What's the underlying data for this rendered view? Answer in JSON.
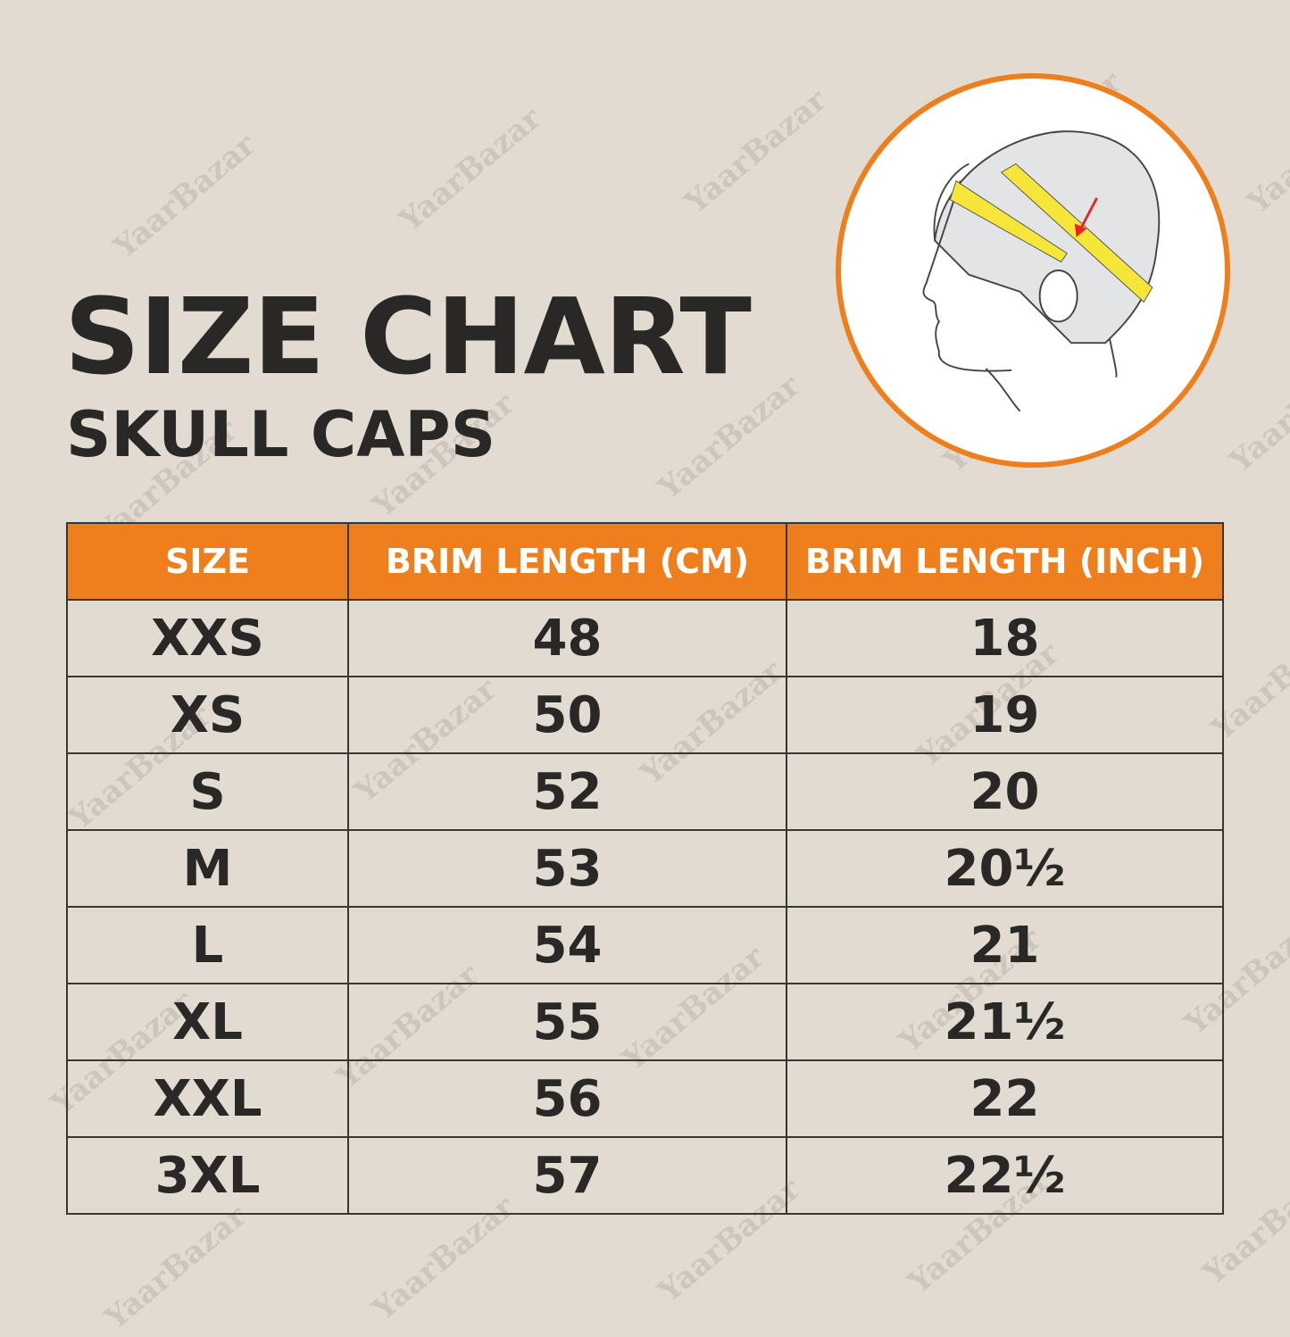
{
  "watermark": "YaarBazar",
  "title": "SIZE CHART",
  "subtitle": "SKULL CAPS",
  "colors": {
    "background": "#e2dbd2",
    "accent": "#ee7f1c",
    "text": "#2a2826"
  },
  "illustration": {
    "description_icon": "head-measuring-tape-icon"
  },
  "table": {
    "headers": [
      "SIZE",
      "BRIM LENGTH (CM)",
      "BRIM LENGTH (INCH)"
    ],
    "rows": [
      [
        "XXS",
        "48",
        "18"
      ],
      [
        "XS",
        "50",
        "19"
      ],
      [
        "S",
        "52",
        "20"
      ],
      [
        "M",
        "53",
        "20½"
      ],
      [
        "L",
        "54",
        "21"
      ],
      [
        "XL",
        "55",
        "21½"
      ],
      [
        "XXL",
        "56",
        "22"
      ],
      [
        "3XL",
        "57",
        "22½"
      ]
    ]
  }
}
